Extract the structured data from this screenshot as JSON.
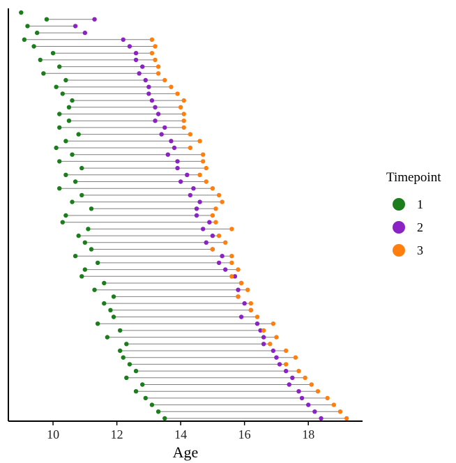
{
  "chart_data": {
    "type": "scatter",
    "subtype": "dumbbell",
    "xlabel": "Age",
    "ylabel": "",
    "xlim": [
      8.6,
      19.7
    ],
    "xticks": [
      10,
      12,
      14,
      16,
      18
    ],
    "xtick_labels": [
      "10",
      "12",
      "14",
      "16",
      "18"
    ],
    "grid": false,
    "legend": {
      "title": "Timepoint",
      "placement": "right",
      "entries": [
        {
          "label": "1",
          "color": "#1b7d1b"
        },
        {
          "label": "2",
          "color": "#8a22c4"
        },
        {
          "label": "3",
          "color": "#ff7f0e"
        }
      ]
    },
    "colors": {
      "t1": "#1b7d1b",
      "t2": "#8a22c4",
      "t3": "#ff7f0e",
      "segment": "#7f7f7f"
    },
    "series_names": [
      "1",
      "2",
      "3"
    ],
    "rows": [
      [
        9.0,
        null,
        null
      ],
      [
        9.8,
        11.3,
        null
      ],
      [
        9.2,
        10.7,
        null
      ],
      [
        9.5,
        11.0,
        null
      ],
      [
        9.1,
        12.2,
        13.1
      ],
      [
        9.4,
        12.4,
        13.2
      ],
      [
        10.0,
        12.6,
        13.1
      ],
      [
        9.6,
        12.6,
        13.2
      ],
      [
        10.2,
        12.8,
        13.3
      ],
      [
        9.7,
        12.7,
        13.3
      ],
      [
        10.4,
        12.9,
        13.5
      ],
      [
        10.1,
        13.0,
        13.7
      ],
      [
        10.3,
        13.0,
        13.9
      ],
      [
        10.6,
        13.1,
        14.1
      ],
      [
        10.5,
        13.2,
        14.0
      ],
      [
        10.2,
        13.3,
        14.1
      ],
      [
        10.5,
        13.2,
        14.1
      ],
      [
        10.2,
        13.5,
        14.1
      ],
      [
        10.8,
        13.4,
        14.3
      ],
      [
        10.4,
        13.7,
        14.6
      ],
      [
        10.1,
        13.8,
        14.3
      ],
      [
        10.6,
        13.6,
        14.7
      ],
      [
        10.2,
        13.9,
        14.7
      ],
      [
        10.9,
        13.9,
        14.8
      ],
      [
        10.4,
        14.2,
        14.6
      ],
      [
        10.7,
        14.0,
        14.8
      ],
      [
        10.2,
        14.4,
        15.0
      ],
      [
        10.9,
        14.3,
        15.2
      ],
      [
        10.6,
        14.6,
        15.3
      ],
      [
        11.2,
        14.5,
        15.1
      ],
      [
        10.4,
        14.5,
        15.0
      ],
      [
        10.3,
        14.9,
        15.1
      ],
      [
        11.1,
        14.7,
        15.6
      ],
      [
        10.8,
        15.0,
        15.2
      ],
      [
        11.0,
        14.8,
        15.4
      ],
      [
        11.2,
        15.0,
        15.0
      ],
      [
        10.7,
        15.3,
        15.6
      ],
      [
        11.4,
        15.2,
        15.6
      ],
      [
        11.0,
        15.4,
        15.8
      ],
      [
        10.9,
        15.7,
        15.6
      ],
      [
        11.6,
        15.9,
        15.9
      ],
      [
        11.3,
        15.8,
        16.1
      ],
      [
        11.9,
        15.8,
        15.8
      ],
      [
        11.6,
        16.0,
        16.2
      ],
      [
        11.8,
        16.2,
        16.2
      ],
      [
        11.9,
        15.9,
        16.4
      ],
      [
        11.4,
        16.4,
        16.9
      ],
      [
        12.1,
        16.5,
        16.6
      ],
      [
        11.7,
        16.6,
        17.0
      ],
      [
        12.3,
        16.6,
        16.8
      ],
      [
        12.1,
        16.9,
        17.3
      ],
      [
        12.2,
        17.0,
        17.6
      ],
      [
        12.4,
        17.1,
        17.3
      ],
      [
        12.6,
        17.3,
        17.7
      ],
      [
        12.3,
        17.5,
        17.9
      ],
      [
        12.8,
        17.4,
        18.1
      ],
      [
        12.6,
        17.7,
        18.3
      ],
      [
        12.9,
        17.8,
        18.6
      ],
      [
        13.1,
        18.0,
        18.8
      ],
      [
        13.3,
        18.2,
        19.0
      ],
      [
        13.5,
        18.4,
        19.2
      ]
    ]
  },
  "axis_title": "Age"
}
